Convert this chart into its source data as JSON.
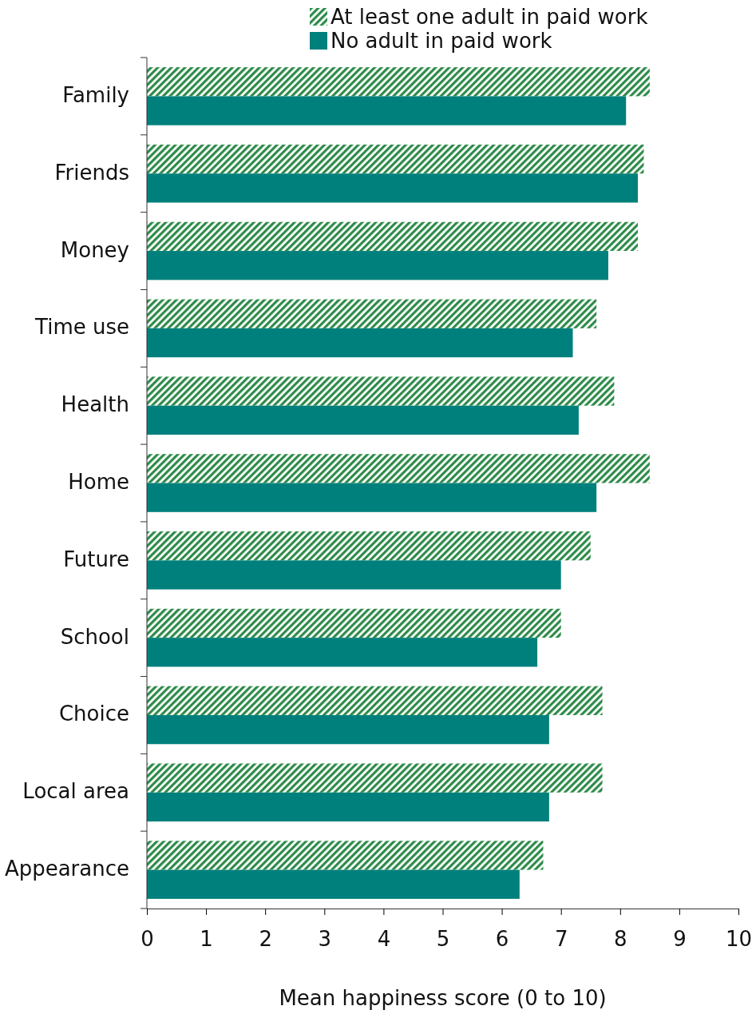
{
  "chart_data": {
    "type": "bar",
    "orientation": "horizontal",
    "xlabel": "Mean happiness score (0 to 10)",
    "categories": [
      "Family",
      "Friends",
      "Money",
      "Time use",
      "Health",
      "Home",
      "Future",
      "School",
      "Choice",
      "Local area",
      "Appearance"
    ],
    "series": [
      {
        "name": "At least one adult in paid work",
        "color": "#2e8b4a",
        "values": [
          8.5,
          8.4,
          8.3,
          7.6,
          7.9,
          8.5,
          7.5,
          7.0,
          7.7,
          7.7,
          6.7
        ]
      },
      {
        "name": "No adult in paid work",
        "color": "#00807c",
        "values": [
          8.1,
          8.3,
          7.8,
          7.2,
          7.3,
          7.6,
          7.0,
          6.6,
          6.8,
          6.8,
          6.3
        ]
      }
    ],
    "xlim": [
      0,
      10
    ],
    "xticks": [
      0,
      1,
      2,
      3,
      4,
      5,
      6,
      7,
      8,
      9,
      10
    ],
    "legend": "top",
    "grid": false
  }
}
